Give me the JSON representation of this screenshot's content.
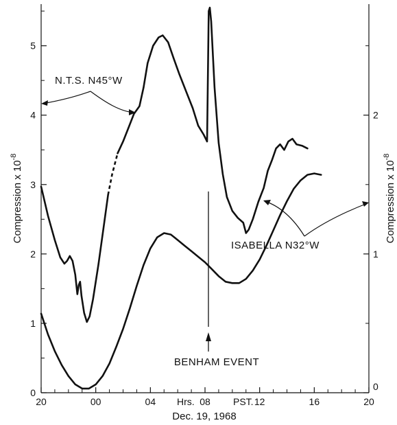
{
  "chart_data": {
    "type": "line",
    "xlabel": "Dec. 19, 1968",
    "x_tick_labels": [
      "20",
      "00",
      "04",
      "08",
      "12",
      "16",
      "20"
    ],
    "x_range": [
      20,
      44
    ],
    "x_mid_labels": {
      "hrs": "Hrs.",
      "pst": "PST."
    },
    "y_left": {
      "label": "Compression x 10",
      "exponent": "-8",
      "ticks": [
        "0",
        "1",
        "2",
        "3",
        "4",
        "5"
      ],
      "range": [
        0,
        5.6
      ]
    },
    "y_right": {
      "label": "Compression x 10",
      "exponent": "-8",
      "ticks": [
        "0",
        "1",
        "2"
      ],
      "range": [
        0,
        2.8
      ]
    },
    "series": [
      {
        "name": "N.T.S. N45°W",
        "axis": "left",
        "points": [
          [
            20.0,
            2.97
          ],
          [
            20.5,
            2.55
          ],
          [
            21.0,
            2.2
          ],
          [
            21.4,
            1.95
          ],
          [
            21.7,
            1.86
          ],
          [
            21.9,
            1.9
          ],
          [
            22.1,
            1.97
          ],
          [
            22.3,
            1.9
          ],
          [
            22.5,
            1.7
          ],
          [
            22.65,
            1.42
          ],
          [
            22.75,
            1.55
          ],
          [
            22.85,
            1.6
          ],
          [
            22.95,
            1.4
          ],
          [
            23.15,
            1.15
          ],
          [
            23.35,
            1.02
          ],
          [
            23.55,
            1.1
          ],
          [
            23.8,
            1.35
          ],
          [
            24.2,
            1.85
          ],
          [
            24.6,
            2.42
          ],
          [
            24.9,
            2.85
          ]
        ],
        "dashed_segment": [
          [
            24.9,
            2.85
          ],
          [
            25.2,
            3.15
          ],
          [
            25.6,
            3.45
          ]
        ],
        "points_after": [
          [
            25.6,
            3.45
          ],
          [
            26.0,
            3.62
          ],
          [
            26.4,
            3.82
          ],
          [
            26.8,
            4.02
          ],
          [
            27.2,
            4.13
          ],
          [
            27.5,
            4.4
          ],
          [
            27.8,
            4.75
          ],
          [
            28.2,
            5.0
          ],
          [
            28.6,
            5.12
          ],
          [
            28.9,
            5.15
          ],
          [
            29.3,
            5.05
          ],
          [
            29.7,
            4.82
          ],
          [
            30.1,
            4.6
          ],
          [
            30.6,
            4.35
          ],
          [
            31.1,
            4.1
          ],
          [
            31.5,
            3.85
          ],
          [
            31.9,
            3.72
          ],
          [
            32.15,
            3.62
          ],
          [
            32.2,
            4.4
          ],
          [
            32.27,
            5.5
          ],
          [
            32.35,
            5.55
          ],
          [
            32.45,
            5.35
          ],
          [
            32.7,
            4.4
          ],
          [
            33.0,
            3.6
          ],
          [
            33.3,
            3.15
          ],
          [
            33.6,
            2.82
          ],
          [
            34.0,
            2.62
          ],
          [
            34.4,
            2.52
          ],
          [
            34.8,
            2.45
          ],
          [
            35.0,
            2.3
          ],
          [
            35.2,
            2.35
          ],
          [
            35.5,
            2.5
          ],
          [
            35.9,
            2.75
          ],
          [
            36.3,
            2.95
          ],
          [
            36.6,
            3.2
          ],
          [
            36.9,
            3.35
          ],
          [
            37.2,
            3.52
          ],
          [
            37.5,
            3.58
          ],
          [
            37.8,
            3.5
          ],
          [
            38.1,
            3.62
          ],
          [
            38.4,
            3.66
          ],
          [
            38.7,
            3.58
          ],
          [
            39.1,
            3.56
          ],
          [
            39.5,
            3.52
          ]
        ]
      },
      {
        "name": "ISABELLA N32°W",
        "axis": "right",
        "points": [
          [
            20.0,
            0.57
          ],
          [
            20.5,
            0.42
          ],
          [
            21.0,
            0.3
          ],
          [
            21.5,
            0.2
          ],
          [
            22.0,
            0.12
          ],
          [
            22.5,
            0.06
          ],
          [
            23.0,
            0.03
          ],
          [
            23.5,
            0.03
          ],
          [
            24.0,
            0.06
          ],
          [
            24.5,
            0.12
          ],
          [
            25.0,
            0.21
          ],
          [
            25.5,
            0.33
          ],
          [
            26.0,
            0.46
          ],
          [
            26.5,
            0.61
          ],
          [
            27.0,
            0.77
          ],
          [
            27.5,
            0.92
          ],
          [
            28.0,
            1.04
          ],
          [
            28.5,
            1.12
          ],
          [
            29.0,
            1.15
          ],
          [
            29.5,
            1.14
          ],
          [
            30.0,
            1.1
          ],
          [
            30.5,
            1.06
          ],
          [
            31.0,
            1.02
          ],
          [
            31.5,
            0.98
          ],
          [
            32.0,
            0.94
          ],
          [
            32.5,
            0.89
          ],
          [
            33.0,
            0.84
          ],
          [
            33.5,
            0.8
          ],
          [
            34.0,
            0.79
          ],
          [
            34.5,
            0.79
          ],
          [
            35.0,
            0.82
          ],
          [
            35.5,
            0.88
          ],
          [
            36.0,
            0.96
          ],
          [
            36.5,
            1.06
          ],
          [
            37.0,
            1.17
          ],
          [
            37.5,
            1.28
          ],
          [
            38.0,
            1.38
          ],
          [
            38.5,
            1.47
          ],
          [
            39.0,
            1.53
          ],
          [
            39.5,
            1.57
          ],
          [
            40.0,
            1.58
          ],
          [
            40.5,
            1.57
          ]
        ]
      }
    ],
    "event_marker_x": 32.25,
    "annotations": {
      "nts": "N.T.S. N45°W",
      "isabella": "ISABELLA N32°W",
      "event": "BENHAM EVENT"
    },
    "grid": false
  }
}
